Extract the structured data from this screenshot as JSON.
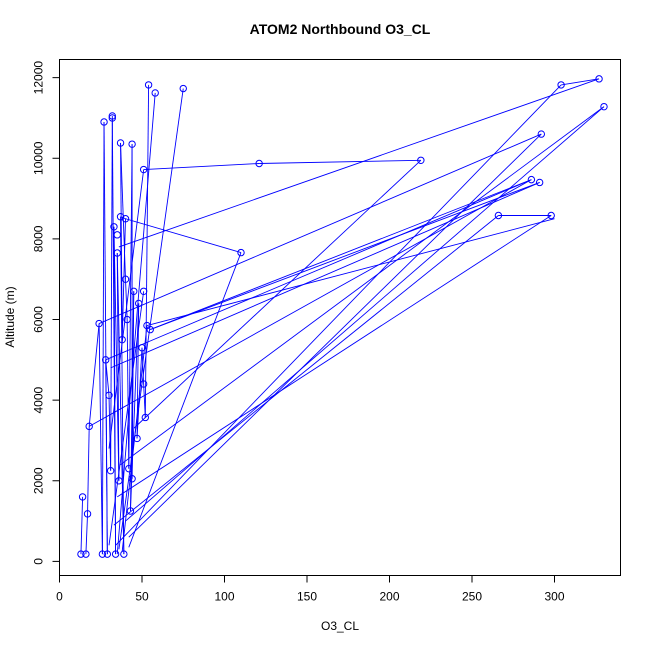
{
  "chart_data": {
    "type": "line",
    "title": "ATOM2 Northbound O3_CL",
    "xlabel": "O3_CL",
    "ylabel": "Altitude (m)",
    "xlim": [
      0,
      340
    ],
    "ylim": [
      -350,
      12450
    ],
    "xticks": [
      0,
      50,
      100,
      150,
      200,
      250,
      300
    ],
    "yticks": [
      0,
      2000,
      4000,
      6000,
      8000,
      10000,
      12000
    ],
    "series_color": "#0000ff",
    "points": [
      {
        "x": 13,
        "y": 180
      },
      {
        "x": 14,
        "y": 1600
      },
      {
        "x": 16,
        "y": 180
      },
      {
        "x": 17,
        "y": 1180
      },
      {
        "x": 18,
        "y": 3350
      },
      {
        "x": 24,
        "y": 5900
      },
      {
        "x": 26,
        "y": 180
      },
      {
        "x": 27,
        "y": 10900
      },
      {
        "x": 29,
        "y": 180
      },
      {
        "x": 28,
        "y": 5000
      },
      {
        "x": 30,
        "y": 4120
      },
      {
        "x": 31,
        "y": 2250
      },
      {
        "x": 32,
        "y": 11000
      },
      {
        "x": 32,
        "y": 11050
      },
      {
        "x": 33,
        "y": 8300
      },
      {
        "x": 34,
        "y": 180
      },
      {
        "x": 35,
        "y": 7650
      },
      {
        "x": 35,
        "y": 8100
      },
      {
        "x": 36,
        "y": 2000
      },
      {
        "x": 37,
        "y": 8550
      },
      {
        "x": 37,
        "y": 10380
      },
      {
        "x": 38,
        "y": 5500
      },
      {
        "x": 39,
        "y": 180
      },
      {
        "x": 40,
        "y": 8500
      },
      {
        "x": 40,
        "y": 7000
      },
      {
        "x": 41,
        "y": 6000
      },
      {
        "x": 42,
        "y": 2300
      },
      {
        "x": 43,
        "y": 1250
      },
      {
        "x": 44,
        "y": 2050
      },
      {
        "x": 44,
        "y": 10350
      },
      {
        "x": 45,
        "y": 6700
      },
      {
        "x": 47,
        "y": 3050
      },
      {
        "x": 48,
        "y": 6400
      },
      {
        "x": 50,
        "y": 5300
      },
      {
        "x": 51,
        "y": 4400
      },
      {
        "x": 51,
        "y": 6700
      },
      {
        "x": 51,
        "y": 9720
      },
      {
        "x": 52,
        "y": 3570
      },
      {
        "x": 53,
        "y": 5850
      },
      {
        "x": 54,
        "y": 11820
      },
      {
        "x": 55,
        "y": 5750
      },
      {
        "x": 58,
        "y": 11620
      },
      {
        "x": 75,
        "y": 11730
      },
      {
        "x": 110,
        "y": 7660
      },
      {
        "x": 121,
        "y": 9870
      },
      {
        "x": 219,
        "y": 9950
      },
      {
        "x": 266,
        "y": 8580
      },
      {
        "x": 286,
        "y": 9470
      },
      {
        "x": 291,
        "y": 9400
      },
      {
        "x": 292,
        "y": 10600
      },
      {
        "x": 298,
        "y": 8580
      },
      {
        "x": 304,
        "y": 11820
      },
      {
        "x": 327,
        "y": 11970
      },
      {
        "x": 330,
        "y": 11280
      }
    ],
    "segments": [
      [
        [
          13,
          180
        ],
        [
          14,
          1600
        ]
      ],
      [
        [
          16,
          180
        ],
        [
          17,
          1180
        ]
      ],
      [
        [
          17,
          1180
        ],
        [
          18,
          3350
        ]
      ],
      [
        [
          18,
          3350
        ],
        [
          24,
          5900
        ]
      ],
      [
        [
          24,
          5900
        ],
        [
          26,
          180
        ]
      ],
      [
        [
          26,
          180
        ],
        [
          27,
          10900
        ]
      ],
      [
        [
          27,
          10900
        ],
        [
          29,
          180
        ]
      ],
      [
        [
          29,
          180
        ],
        [
          28,
          5000
        ]
      ],
      [
        [
          28,
          5000
        ],
        [
          30,
          4120
        ]
      ],
      [
        [
          30,
          4120
        ],
        [
          31,
          2250
        ]
      ],
      [
        [
          31,
          2250
        ],
        [
          32,
          11000
        ]
      ],
      [
        [
          32,
          11050
        ],
        [
          34,
          180
        ]
      ],
      [
        [
          34,
          180
        ],
        [
          33,
          8300
        ]
      ],
      [
        [
          33,
          8300
        ],
        [
          36,
          2000
        ]
      ],
      [
        [
          36,
          2000
        ],
        [
          35,
          7650
        ]
      ],
      [
        [
          35,
          7650
        ],
        [
          39,
          180
        ]
      ],
      [
        [
          39,
          180
        ],
        [
          37,
          8550
        ]
      ],
      [
        [
          37,
          8550
        ],
        [
          40,
          8500
        ]
      ],
      [
        [
          40,
          8500
        ],
        [
          38,
          5500
        ]
      ],
      [
        [
          38,
          5500
        ],
        [
          37,
          10380
        ]
      ],
      [
        [
          37,
          10380
        ],
        [
          40,
          7000
        ]
      ],
      [
        [
          40,
          7000
        ],
        [
          41,
          6000
        ]
      ],
      [
        [
          41,
          6000
        ],
        [
          42,
          2300
        ]
      ],
      [
        [
          42,
          2300
        ],
        [
          44,
          10350
        ]
      ],
      [
        [
          44,
          10350
        ],
        [
          44,
          2050
        ]
      ],
      [
        [
          44,
          2050
        ],
        [
          45,
          6700
        ]
      ],
      [
        [
          45,
          6700
        ],
        [
          43,
          1250
        ]
      ],
      [
        [
          43,
          1250
        ],
        [
          48,
          6400
        ]
      ],
      [
        [
          48,
          6400
        ],
        [
          47,
          3050
        ]
      ],
      [
        [
          47,
          3050
        ],
        [
          50,
          5300
        ]
      ],
      [
        [
          50,
          5300
        ],
        [
          51,
          4400
        ]
      ],
      [
        [
          51,
          4400
        ],
        [
          52,
          3570
        ]
      ],
      [
        [
          52,
          3570
        ],
        [
          54,
          11820
        ]
      ],
      [
        [
          35,
          180
        ],
        [
          58,
          11620
        ]
      ],
      [
        [
          36,
          300
        ],
        [
          75,
          11730
        ]
      ],
      [
        [
          38,
          250
        ],
        [
          53,
          5850
        ]
      ],
      [
        [
          30,
          400
        ],
        [
          51,
          6700
        ]
      ],
      [
        [
          51,
          9720
        ],
        [
          121,
          9870
        ]
      ],
      [
        [
          121,
          9870
        ],
        [
          219,
          9950
        ]
      ],
      [
        [
          42,
          350
        ],
        [
          110,
          7660
        ]
      ],
      [
        [
          110,
          7660
        ],
        [
          40,
          8500
        ]
      ],
      [
        [
          24,
          5900
        ],
        [
          292,
          10600
        ]
      ],
      [
        [
          28,
          5000
        ],
        [
          286,
          9470
        ]
      ],
      [
        [
          286,
          9470
        ],
        [
          55,
          5750
        ]
      ],
      [
        [
          55,
          5750
        ],
        [
          291,
          9400
        ]
      ],
      [
        [
          33,
          900
        ],
        [
          266,
          8580
        ]
      ],
      [
        [
          266,
          8580
        ],
        [
          298,
          8580
        ]
      ],
      [
        [
          298,
          8580
        ],
        [
          35,
          1600
        ]
      ],
      [
        [
          37,
          2400
        ],
        [
          330,
          11280
        ]
      ],
      [
        [
          330,
          11280
        ],
        [
          40,
          1000
        ]
      ],
      [
        [
          36,
          7800
        ],
        [
          327,
          11970
        ]
      ],
      [
        [
          327,
          11970
        ],
        [
          304,
          11820
        ]
      ],
      [
        [
          42,
          600
        ],
        [
          292,
          10600
        ]
      ],
      [
        [
          18,
          3350
        ],
        [
          286,
          9470
        ]
      ],
      [
        [
          30,
          2800
        ],
        [
          51,
          9720
        ]
      ],
      [
        [
          53,
          5850
        ],
        [
          300,
          8500
        ]
      ],
      [
        [
          34,
          400
        ],
        [
          304,
          11820
        ]
      ],
      [
        [
          45,
          3300
        ],
        [
          219,
          9950
        ]
      ],
      [
        [
          31,
          4800
        ],
        [
          291,
          9400
        ]
      ]
    ]
  }
}
